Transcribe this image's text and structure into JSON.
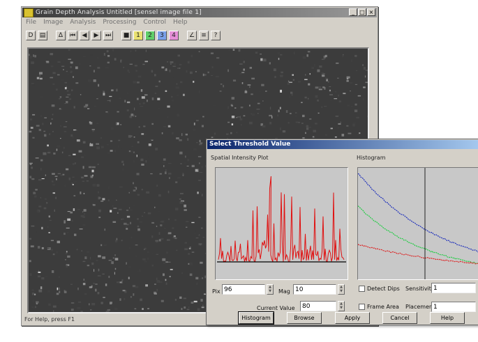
{
  "window": {
    "title": "Grain Depth Analysis  Untitled  [sensel image file 1]",
    "minimize": "_",
    "maximize": "□",
    "close": "×"
  },
  "menu": [
    "File",
    "Image",
    "Analysis",
    "Processing",
    "Control",
    "Help"
  ],
  "toolbar": {
    "buttons": [
      {
        "icon": "new-file-icon",
        "glyph": "D"
      },
      {
        "icon": "open-file-icon",
        "glyph": "▤"
      },
      {
        "icon": "histogram-icon",
        "glyph": "Δ"
      },
      {
        "icon": "first-frame-icon",
        "glyph": "⏮"
      },
      {
        "icon": "previous-frame-icon",
        "glyph": "◀"
      },
      {
        "icon": "next-frame-icon",
        "glyph": "▶"
      },
      {
        "icon": "last-frame-icon",
        "glyph": "⏭"
      },
      {
        "icon": "stop-icon",
        "glyph": "■"
      },
      {
        "icon": "channel-1-icon",
        "glyph": "1"
      },
      {
        "icon": "channel-2-icon",
        "glyph": "2"
      },
      {
        "icon": "channel-3-icon",
        "glyph": "3"
      },
      {
        "icon": "channel-4-icon",
        "glyph": "4"
      },
      {
        "icon": "edit-icon",
        "glyph": "∠"
      },
      {
        "icon": "list-icon",
        "glyph": "≡"
      },
      {
        "icon": "help-icon",
        "glyph": "?"
      }
    ]
  },
  "status": "For Help, press F1",
  "dialog": {
    "title": "Select Threshold Value",
    "spatial_label": "Spatial Intensity Plot",
    "histogram_label": "Histogram",
    "pix_label": "Pix",
    "pix_value": "96",
    "mag_label": "Mag",
    "mag_value": "10",
    "current_value_label": "Current Value",
    "current_value": "80",
    "detect_dips_label": "Detect Dips",
    "sensitivity_label": "Sensitivity",
    "sensitivity_value": "1",
    "frame_area_label": "Frame Area",
    "placement_label": "Placement",
    "placement_value": "1",
    "buttons": [
      "Histogram",
      "Browse",
      "Apply",
      "Cancel",
      "Help"
    ],
    "colors": {
      "spatial_line": "#e01010",
      "hist_blue": "#2233bb",
      "hist_green": "#22cc44",
      "hist_red": "#dd2222"
    }
  }
}
